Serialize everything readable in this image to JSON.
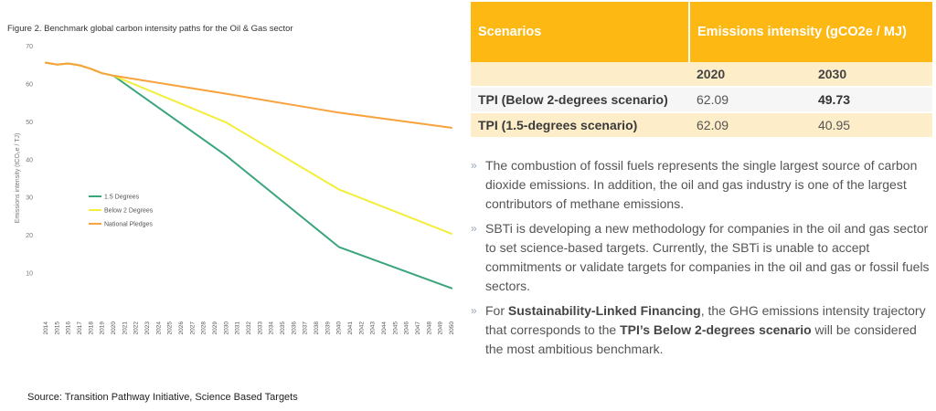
{
  "figure": {
    "title": "Figure 2. Benchmark global carbon intensity paths for the Oil & Gas sector",
    "source": "Source: Transition Pathway Initiative, Science Based Targets"
  },
  "chart_data": {
    "type": "line",
    "title": "Figure 2. Benchmark global carbon intensity paths for the Oil & Gas sector",
    "xlabel": "",
    "ylabel": "Emissions intensity (tCO₂e / TJ)",
    "ylim": [
      0,
      70
    ],
    "yticks": [
      10,
      20,
      30,
      40,
      50,
      60,
      70
    ],
    "x": [
      2014,
      2015,
      2016,
      2017,
      2018,
      2019,
      2020,
      2021,
      2022,
      2023,
      2024,
      2025,
      2026,
      2027,
      2028,
      2029,
      2030,
      2031,
      2032,
      2033,
      2034,
      2035,
      2036,
      2037,
      2038,
      2039,
      2040,
      2041,
      2042,
      2043,
      2044,
      2045,
      2046,
      2047,
      2048,
      2049,
      2050
    ],
    "grid": false,
    "legend_position": "left-middle",
    "series": [
      {
        "name": "1.5 Degrees",
        "color": "#3AA57A",
        "points": [
          [
            2014,
            65.5
          ],
          [
            2015,
            65
          ],
          [
            2016,
            65.3
          ],
          [
            2017,
            64.8
          ],
          [
            2018,
            63.9
          ],
          [
            2019,
            62.7
          ],
          [
            2020,
            62.09
          ],
          [
            2030,
            40.95
          ],
          [
            2040,
            16.8
          ],
          [
            2050,
            5.9
          ]
        ]
      },
      {
        "name": "Below 2 Degrees",
        "color": "#F2EE3A",
        "points": [
          [
            2014,
            65.5
          ],
          [
            2015,
            65
          ],
          [
            2016,
            65.3
          ],
          [
            2017,
            64.8
          ],
          [
            2018,
            63.9
          ],
          [
            2019,
            62.7
          ],
          [
            2020,
            62.09
          ],
          [
            2030,
            49.73
          ],
          [
            2040,
            32
          ],
          [
            2050,
            20.3
          ]
        ]
      },
      {
        "name": "National Pledges",
        "color": "#F7A23A",
        "points": [
          [
            2014,
            65.5
          ],
          [
            2015,
            65
          ],
          [
            2016,
            65.3
          ],
          [
            2017,
            64.8
          ],
          [
            2018,
            63.9
          ],
          [
            2019,
            62.7
          ],
          [
            2020,
            62.09
          ],
          [
            2030,
            57.3
          ],
          [
            2040,
            52.3
          ],
          [
            2050,
            48.3
          ]
        ]
      }
    ]
  },
  "table": {
    "col_scenarios": "Scenarios",
    "col_intensity": "Emissions intensity (gCO2e / MJ)",
    "year_a": "2020",
    "year_b": "2030",
    "rows": [
      {
        "name": "TPI (Below 2-degrees scenario)",
        "v2020": "62.09",
        "v2030": "49.73"
      },
      {
        "name": "TPI (1.5-degrees scenario)",
        "v2020": "62.09",
        "v2030": "40.95"
      }
    ]
  },
  "bullets": {
    "marker": "»",
    "b1": "The combustion of fossil fuels represents the single largest source of carbon dioxide emissions. In addition, the oil and gas industry is one of the largest contributors of methane emissions.",
    "b2": "SBTi is developing a new methodology for companies in the oil and gas sector to set science-based targets. Currently, the SBTi is unable to accept commitments or validate targets for companies in the oil and gas or fossil fuels sectors.",
    "b3_pre": "For ",
    "b3_bold1": "Sustainability-Linked Financing",
    "b3_mid": ", the GHG emissions intensity trajectory that corresponds to the ",
    "b3_bold2": "TPI’s Below 2-degrees scenario",
    "b3_post": " will be considered the most ambitious benchmark."
  }
}
